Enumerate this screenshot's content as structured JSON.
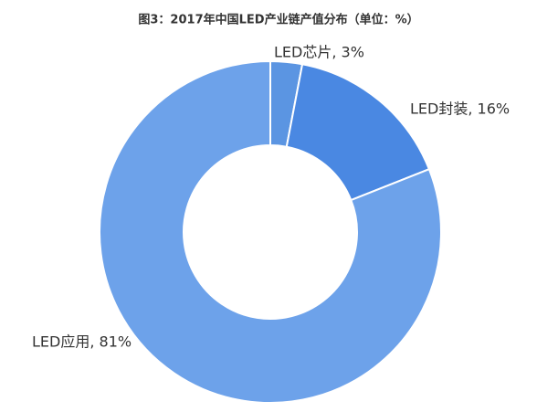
{
  "chart_data": {
    "type": "donut",
    "title": "图3：2017年中国LED产业链产值分布（单位：%）",
    "values": [
      3,
      16,
      81
    ],
    "value_labels": [
      "LED芯片, 3%",
      "LED封装, 16%",
      "LED应用, 81%"
    ],
    "colors": [
      "#5b95e2",
      "#4a88e2",
      "#6da2ea"
    ]
  }
}
